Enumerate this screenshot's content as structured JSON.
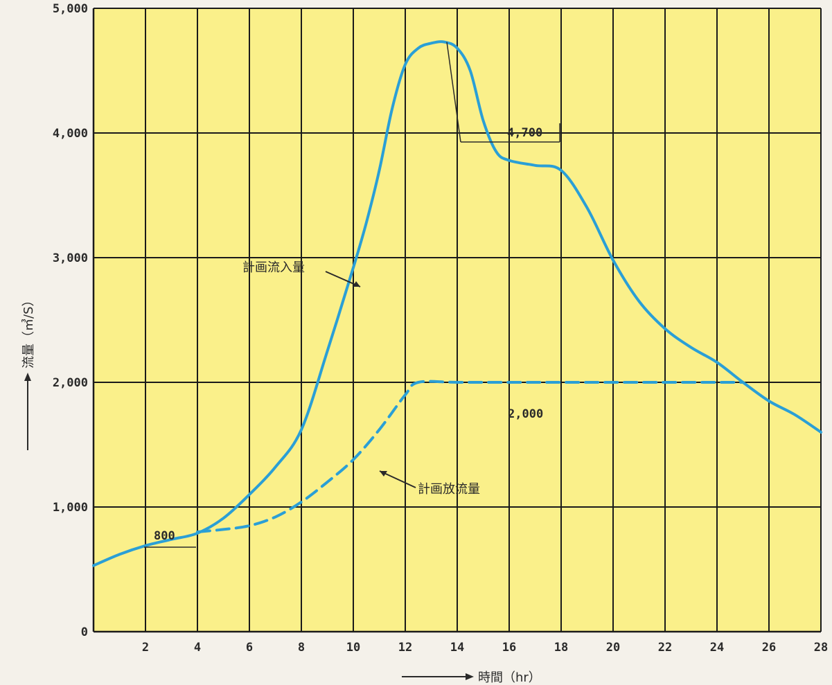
{
  "chart_data": {
    "type": "line",
    "xlabel": "時間（hr）",
    "ylabel": "流量（㎥/S）",
    "xlim": [
      0,
      28
    ],
    "ylim": [
      0,
      5000
    ],
    "xticks": [
      2,
      4,
      6,
      8,
      10,
      12,
      14,
      16,
      18,
      20,
      22,
      24,
      26,
      28
    ],
    "yticks": [
      0,
      1000,
      2000,
      3000,
      4000,
      5000
    ],
    "xtick_labels": [
      "2",
      "4",
      "6",
      "8",
      "10",
      "12",
      "14",
      "16",
      "18",
      "20",
      "22",
      "24",
      "26",
      "28"
    ],
    "ytick_labels": [
      "0",
      "1,000",
      "2,000",
      "3,000",
      "4,000",
      "5,000"
    ],
    "grid": true,
    "background_color": "#faf08a",
    "grid_color": "#1a1a1a",
    "series": [
      {
        "name": "計画流入量",
        "style": "solid",
        "color": "#2a9fd6",
        "x": [
          0,
          1,
          2,
          3,
          4,
          5,
          6,
          7,
          8,
          9,
          10,
          10.5,
          11,
          11.5,
          12,
          12.5,
          13,
          13.5,
          14,
          14.5,
          15,
          15.5,
          16,
          17,
          18,
          19,
          20,
          21,
          22,
          23,
          24,
          25,
          26,
          27,
          28
        ],
        "y": [
          530,
          620,
          690,
          740,
          790,
          910,
          1100,
          1320,
          1620,
          2250,
          2920,
          3280,
          3700,
          4200,
          4550,
          4680,
          4720,
          4730,
          4680,
          4500,
          4100,
          3850,
          3780,
          3740,
          3700,
          3400,
          2980,
          2650,
          2430,
          2280,
          2160,
          2000,
          1850,
          1740,
          1600
        ]
      },
      {
        "name": "計画放流量",
        "style": "dashed",
        "color": "#2a9fd6",
        "x": [
          4,
          5,
          6,
          7,
          8,
          9,
          10,
          11,
          12,
          12.5,
          14,
          16,
          18,
          20,
          22,
          24,
          25
        ],
        "y": [
          800,
          820,
          850,
          920,
          1040,
          1200,
          1380,
          1620,
          1900,
          2000,
          2000,
          2000,
          2000,
          2000,
          2000,
          2000,
          2000
        ]
      }
    ],
    "annotations": [
      {
        "text": "4,700",
        "x": 13.5,
        "y": 4730
      },
      {
        "text": "2,000",
        "x": 16.5,
        "y": 2000
      },
      {
        "text": "800",
        "x": 2,
        "y": 800
      }
    ]
  }
}
